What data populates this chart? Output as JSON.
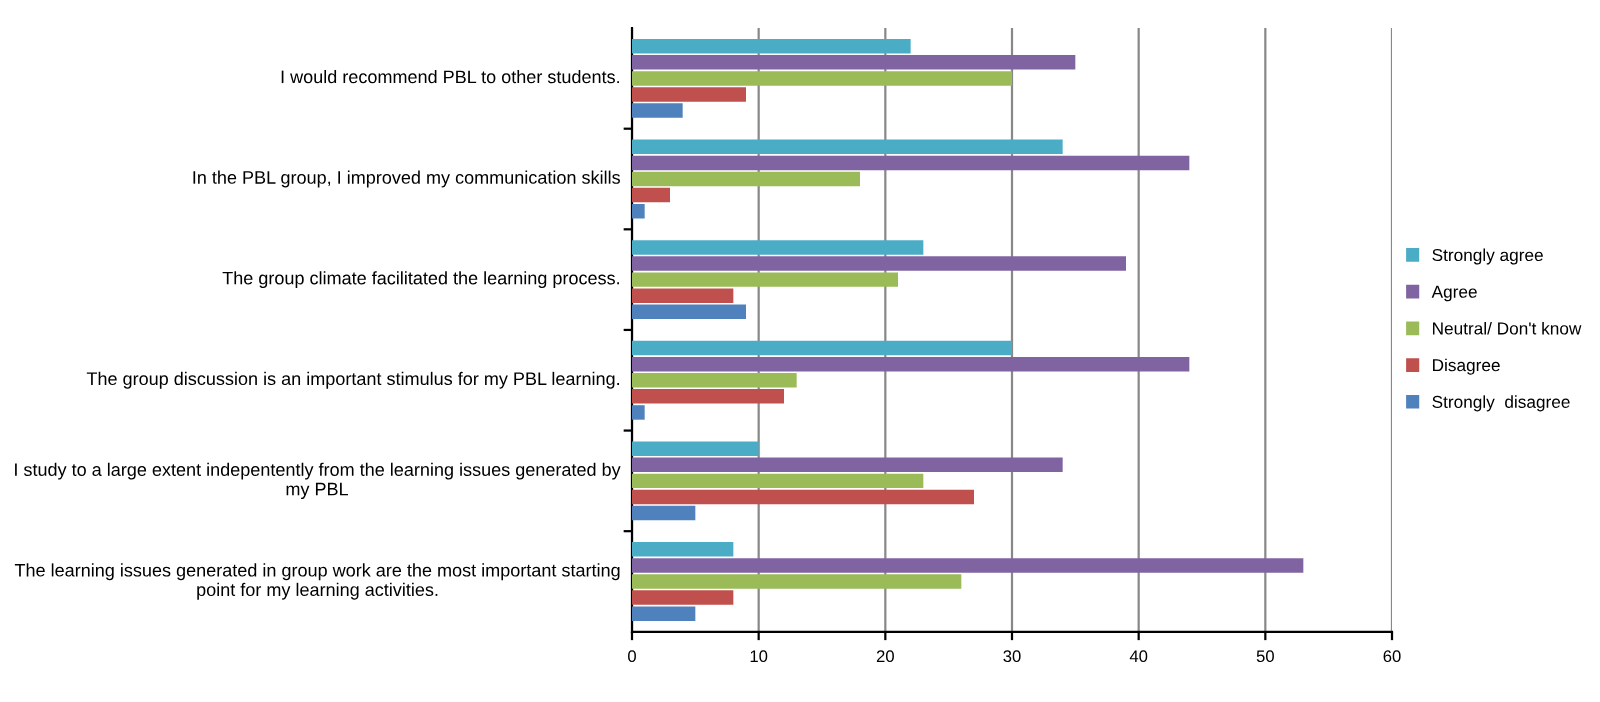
{
  "chart_data": {
    "type": "bar",
    "orientation": "horizontal",
    "categories": [
      "I would recommend PBL to other students.",
      "In the PBL group, I improved my communication skills",
      "The group climate facilitated the learning process.",
      "The group discussion is an important stimulus for my PBL learning.",
      "I study to a large extent indepentently from the learning issues generated by my PBL",
      "The learning issues generated in group work are the most important starting point for my learning activities."
    ],
    "series": [
      {
        "name": "Strongly agree",
        "color": "#4bacc6",
        "values": [
          22,
          34,
          23,
          30,
          10,
          8
        ]
      },
      {
        "name": "Agree",
        "color": "#8064a2",
        "values": [
          35,
          44,
          39,
          44,
          34,
          53
        ]
      },
      {
        "name": "Neutral/ Don't know",
        "color": "#9bbb59",
        "values": [
          30,
          18,
          21,
          13,
          23,
          26
        ]
      },
      {
        "name": "Disagree",
        "color": "#c0504d",
        "values": [
          9,
          3,
          8,
          12,
          27,
          8
        ]
      },
      {
        "name": "Strongly  disagree",
        "color": "#4f81bd",
        "values": [
          4,
          1,
          9,
          1,
          5,
          5
        ]
      }
    ],
    "xlim": [
      0,
      60
    ],
    "xticks": [
      0,
      10,
      20,
      30,
      40,
      50,
      60
    ],
    "grid": "x",
    "legend": "right"
  }
}
